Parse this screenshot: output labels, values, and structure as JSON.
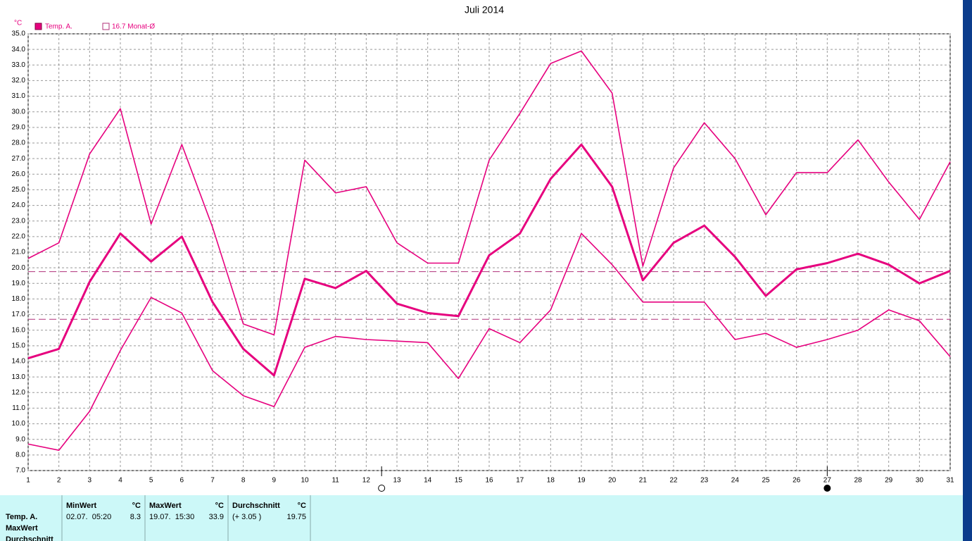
{
  "chart_data": {
    "type": "line",
    "title": "Juli 2014",
    "unit_label": "°C",
    "x": [
      1,
      2,
      3,
      4,
      5,
      6,
      7,
      8,
      9,
      10,
      11,
      12,
      13,
      14,
      15,
      16,
      17,
      18,
      19,
      20,
      21,
      22,
      23,
      24,
      25,
      26,
      27,
      28,
      29,
      30,
      31
    ],
    "xlim": [
      1,
      31
    ],
    "xticks": [
      1,
      2,
      3,
      4,
      5,
      6,
      7,
      8,
      9,
      10,
      11,
      12,
      13,
      14,
      15,
      16,
      17,
      18,
      19,
      20,
      21,
      22,
      23,
      24,
      25,
      26,
      27,
      28,
      29,
      30,
      31
    ],
    "ylim": [
      7,
      35
    ],
    "yticks": [
      {
        "value": 7,
        "label": "7.0"
      },
      {
        "value": 8,
        "label": "8.0"
      },
      {
        "value": 9,
        "label": "9.0"
      },
      {
        "value": 10,
        "label": "10.0"
      },
      {
        "value": 11,
        "label": "11.0"
      },
      {
        "value": 12,
        "label": "12.0"
      },
      {
        "value": 13,
        "label": "13.0"
      },
      {
        "value": 14,
        "label": "14.0"
      },
      {
        "value": 15,
        "label": "15.0"
      },
      {
        "value": 16,
        "label": "16.0"
      },
      {
        "value": 17,
        "label": "17.0"
      },
      {
        "value": 18,
        "label": "18.0"
      },
      {
        "value": 19,
        "label": "19.0"
      },
      {
        "value": 20,
        "label": "20.0"
      },
      {
        "value": 21,
        "label": "21.0"
      },
      {
        "value": 22,
        "label": "22.0"
      },
      {
        "value": 23,
        "label": "23.0"
      },
      {
        "value": 24,
        "label": "24.0"
      },
      {
        "value": 25,
        "label": "25.0"
      },
      {
        "value": 26,
        "label": "26.0"
      },
      {
        "value": 27,
        "label": "27.0"
      },
      {
        "value": 28,
        "label": "28.0"
      },
      {
        "value": 29,
        "label": "29.0"
      },
      {
        "value": 30,
        "label": "30.0"
      },
      {
        "value": 31,
        "label": "31.0"
      },
      {
        "value": 32,
        "label": "32.0"
      },
      {
        "value": 33,
        "label": "33.0"
      },
      {
        "value": 34,
        "label": "34.0"
      },
      {
        "value": 35,
        "label": "35.0"
      }
    ],
    "grid": true,
    "series": [
      {
        "name": "Temp. A.",
        "color": "#e6007e",
        "values": [
          14.2,
          14.8,
          19.1,
          22.2,
          20.4,
          22.0,
          17.8,
          14.8,
          13.1,
          19.3,
          18.7,
          19.8,
          17.7,
          17.1,
          16.9,
          20.8,
          22.2,
          25.7,
          27.9,
          25.2,
          19.2,
          21.6,
          22.7,
          20.7,
          18.2,
          19.9,
          20.3,
          20.9,
          20.2,
          19.0,
          19.8
        ]
      },
      {
        "color": "#e6007e",
        "values": [
          20.6,
          21.6,
          27.3,
          30.2,
          22.8,
          27.9,
          22.6,
          16.4,
          15.7,
          26.9,
          24.8,
          25.2,
          21.6,
          20.3,
          20.3,
          26.9,
          29.9,
          33.1,
          33.9,
          31.2,
          20.1,
          26.4,
          29.3,
          27.0,
          23.4,
          26.1,
          26.1,
          28.2,
          25.5,
          23.1,
          26.8
        ]
      },
      {
        "color": "#e6007e",
        "values": [
          8.7,
          8.3,
          10.8,
          14.7,
          18.1,
          17.1,
          13.4,
          11.8,
          11.1,
          14.9,
          15.6,
          15.4,
          15.3,
          15.2,
          12.9,
          16.1,
          15.2,
          17.3,
          22.2,
          20.2,
          17.8,
          17.8,
          17.8,
          15.4,
          15.8,
          14.9,
          15.4,
          16.0,
          17.3,
          16.6,
          14.3
        ]
      }
    ],
    "monthly_average": {
      "value": 16.7,
      "label": "16.7 Monat-Ø",
      "color": "#b0307a"
    },
    "moon_phases": [
      {
        "x": 12.5,
        "filled": false
      },
      {
        "x": 27,
        "filled": true
      }
    ]
  },
  "stats_table": {
    "row_labels": [
      "Temp. A.",
      "MaxWert",
      "Durchschnitt"
    ],
    "columns": [
      {
        "header": "MinWert",
        "unit": "°C",
        "when": "02.07.  05:20",
        "value": 8.3
      },
      {
        "header": "MaxWert",
        "unit": "°C",
        "when": "19.07.  15:30",
        "value": 33.9
      },
      {
        "header": "Durchschnitt",
        "unit": "°C",
        "when": "(+ 3.05 )",
        "value": 19.75
      }
    ]
  }
}
